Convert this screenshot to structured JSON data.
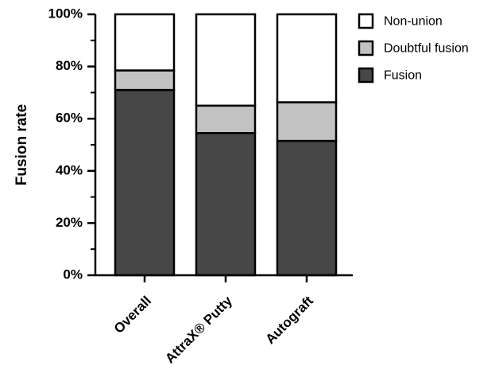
{
  "chart_data": {
    "type": "bar",
    "stacked": true,
    "ylabel": "Fusion rate",
    "xlabel": "",
    "ylim": [
      0,
      100
    ],
    "yticks": [
      "0%",
      "20%",
      "40%",
      "60%",
      "80%",
      "100%"
    ],
    "categories": [
      "Overall",
      "AttraX® Putty",
      "Autograft"
    ],
    "series": [
      {
        "name": "Fusion",
        "color": "#474747",
        "values": [
          71,
          54.5,
          51.5
        ]
      },
      {
        "name": "Doubtful fusion",
        "color": "#c2c2c2",
        "values": [
          7.5,
          10.5,
          14.8
        ]
      },
      {
        "name": "Non-union",
        "color": "#ffffff",
        "values": [
          21.5,
          35,
          33.7
        ]
      }
    ],
    "legend": {
      "position": "top-right",
      "order": [
        "Non-union",
        "Doubtful fusion",
        "Fusion"
      ]
    },
    "grid": false
  }
}
